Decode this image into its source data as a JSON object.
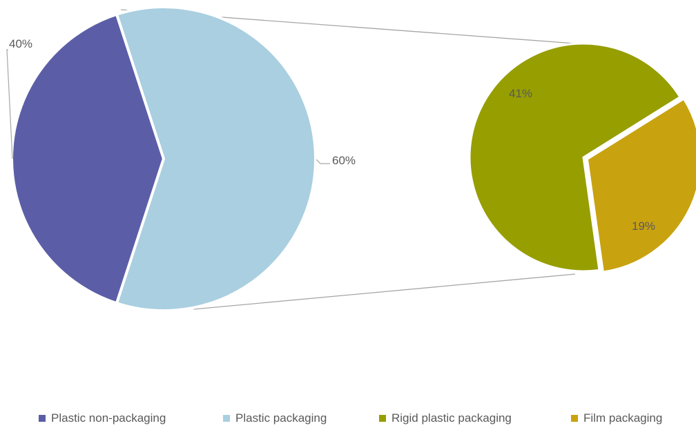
{
  "chart_data": {
    "type": "pie",
    "title": "",
    "colors": {
      "Plastic non-packaging": "#5b5ea6",
      "Plastic packaging": "#a9cfe0",
      "Rigid plastic packaging": "#969e00",
      "Film packaging": "#c9a210",
      "connector": "#a6a6a6",
      "label_text": "#595959"
    },
    "primary_pie": {
      "slices": [
        {
          "name": "Plastic non-packaging",
          "value": 40,
          "label": "40%"
        },
        {
          "name": "Plastic packaging",
          "value": 60,
          "label": "60%"
        }
      ]
    },
    "secondary_pie": {
      "parent": "Plastic packaging",
      "slices": [
        {
          "name": "Rigid plastic packaging",
          "value": 41,
          "label": "41%"
        },
        {
          "name": "Film packaging",
          "value": 19,
          "label": "19%"
        }
      ]
    },
    "legend": {
      "placement": "bottom",
      "items": [
        "Plastic non-packaging",
        "Plastic packaging",
        "Rigid plastic packaging",
        "Film packaging"
      ]
    }
  }
}
